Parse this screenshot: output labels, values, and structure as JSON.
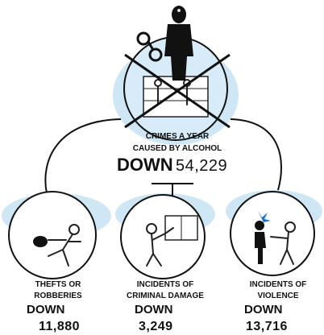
{
  "main": {
    "label_lines": [
      "CRIMES A YEAR",
      "CAUSED BY ALCOHOL"
    ],
    "direction": "DOWN",
    "value": "54,229"
  },
  "items": [
    {
      "label_lines": [
        "THEFTS OR",
        "ROBBERIES"
      ],
      "direction": "DOWN",
      "value": "11,880"
    },
    {
      "label_lines": [
        "INCIDENTS OF",
        "CRIMINAL DAMAGE"
      ],
      "direction": "DOWN",
      "value": "3,249"
    },
    {
      "label_lines": [
        "INCIDENTS OF",
        "VIOLENCE"
      ],
      "direction": "DOWN",
      "value": "13,716"
    }
  ]
}
